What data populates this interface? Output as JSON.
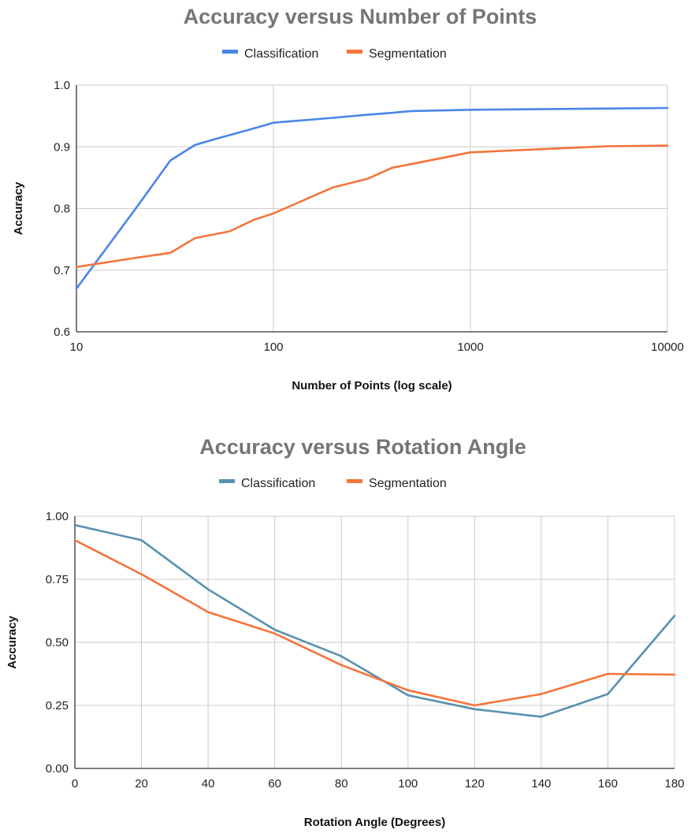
{
  "chart_data": [
    {
      "type": "line",
      "title": "Accuracy versus Number of Points",
      "xlabel": "Number of Points (log scale)",
      "ylabel": "Accuracy",
      "x_scale": "log",
      "xlim": [
        10,
        10000
      ],
      "ylim": [
        0.6,
        1.0
      ],
      "x_ticks": [
        10,
        100,
        1000,
        10000
      ],
      "x_tick_labels": [
        "10",
        "100",
        "1000",
        "10000"
      ],
      "y_ticks": [
        0.6,
        0.7,
        0.8,
        0.9,
        1.0
      ],
      "y_tick_labels": [
        "0.6",
        "0.7",
        "0.8",
        "0.9",
        "1.0"
      ],
      "grid": true,
      "legend_position": "top",
      "series": [
        {
          "name": "Classification",
          "color": "#4a86e8",
          "points": [
            [
              10,
              0.67
            ],
            [
              20,
              0.8
            ],
            [
              30,
              0.878
            ],
            [
              40,
              0.903
            ],
            [
              50,
              0.912
            ],
            [
              60,
              0.919
            ],
            [
              80,
              0.93
            ],
            [
              100,
              0.939
            ],
            [
              200,
              0.947
            ],
            [
              300,
              0.952
            ],
            [
              400,
              0.955
            ],
            [
              500,
              0.958
            ],
            [
              1000,
              0.96
            ],
            [
              10000,
              0.963
            ]
          ]
        },
        {
          "name": "Segmentation",
          "color": "#f4743b",
          "points": [
            [
              10,
              0.705
            ],
            [
              20,
              0.72
            ],
            [
              30,
              0.728
            ],
            [
              40,
              0.752
            ],
            [
              60,
              0.763
            ],
            [
              80,
              0.782
            ],
            [
              100,
              0.792
            ],
            [
              200,
              0.834
            ],
            [
              300,
              0.848
            ],
            [
              400,
              0.866
            ],
            [
              500,
              0.872
            ],
            [
              1000,
              0.891
            ],
            [
              5000,
              0.901
            ],
            [
              10000,
              0.902
            ]
          ]
        }
      ]
    },
    {
      "type": "line",
      "title": "Accuracy versus Rotation Angle",
      "xlabel": "Rotation Angle (Degrees)",
      "ylabel": "Accuracy",
      "x_scale": "linear",
      "xlim": [
        0,
        180
      ],
      "ylim": [
        0.0,
        1.0
      ],
      "x_ticks": [
        0,
        20,
        40,
        60,
        80,
        100,
        120,
        140,
        160,
        180
      ],
      "x_tick_labels": [
        "0",
        "20",
        "40",
        "60",
        "80",
        "100",
        "120",
        "140",
        "160",
        "180"
      ],
      "y_ticks": [
        0.0,
        0.25,
        0.5,
        0.75,
        1.0
      ],
      "y_tick_labels": [
        "0.00",
        "0.25",
        "0.50",
        "0.75",
        "1.00"
      ],
      "grid": true,
      "legend_position": "top",
      "series": [
        {
          "name": "Classification",
          "color": "#5891ad",
          "points": [
            [
              0,
              0.965
            ],
            [
              20,
              0.905
            ],
            [
              40,
              0.71
            ],
            [
              60,
              0.55
            ],
            [
              80,
              0.445
            ],
            [
              100,
              0.29
            ],
            [
              120,
              0.235
            ],
            [
              140,
              0.205
            ],
            [
              160,
              0.295
            ],
            [
              180,
              0.605
            ]
          ]
        },
        {
          "name": "Segmentation",
          "color": "#f4743b",
          "points": [
            [
              0,
              0.905
            ],
            [
              20,
              0.77
            ],
            [
              40,
              0.62
            ],
            [
              60,
              0.535
            ],
            [
              80,
              0.41
            ],
            [
              100,
              0.31
            ],
            [
              120,
              0.25
            ],
            [
              140,
              0.295
            ],
            [
              160,
              0.375
            ],
            [
              180,
              0.372
            ]
          ]
        }
      ]
    }
  ]
}
